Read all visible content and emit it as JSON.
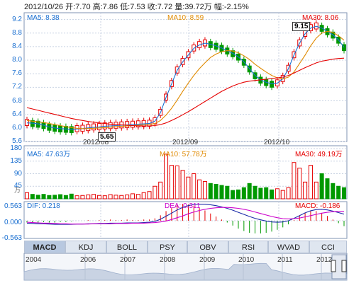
{
  "header": "2012/10/26 开:7.70 高:7.86 低:7.53 收:7.72 量:39.72万 幅:-2.15%",
  "price": {
    "ma5": "MA5: 8.38",
    "ma10": "MA10: 8.59",
    "ma30": "MA30: 8.06",
    "ticks": [
      "9.2",
      "8.8",
      "8.4",
      "8.0",
      "7.6",
      "7.2",
      "6.8",
      "6.4",
      "6.0",
      "5.6"
    ],
    "dates": [
      "2012/08",
      "2012/09",
      "2012/10"
    ],
    "max_label": "9.15",
    "min_label": "5.65"
  },
  "volume": {
    "ma5": "MA5: 47.63万",
    "ma10": "MA10: 57.78万",
    "ma30": "MA30: 49.19万",
    "ticks": [
      "180",
      "135",
      "90",
      "45"
    ],
    "unit": "万"
  },
  "macd": {
    "dif": "DIF: 0.218",
    "dea": "DEA: 0.311",
    "macd": "MACD: -0.186",
    "ticks": [
      "0.563",
      "0.000",
      "-0.563"
    ]
  },
  "tabs": [
    "MACD",
    "KDJ",
    "BOLL",
    "PSY",
    "OBV",
    "RSI",
    "WVAD",
    "CCI"
  ],
  "timeline": [
    "2004",
    "2006",
    "2007",
    "2008",
    "2009",
    "2010",
    "2011",
    "2012"
  ],
  "colors": {
    "up": "#e60000",
    "down": "#009900",
    "ma5": "#1a6fd1",
    "ma10": "#e08a00",
    "ma30": "#e60000",
    "grid": "#c8d2e2"
  },
  "chart_data": [
    {
      "type": "candlestick",
      "ylim": [
        5.6,
        9.4
      ],
      "series": [
        {
          "name": "MA5",
          "values": [
            6.15,
            6.14,
            6.12,
            6.08,
            6.03,
            6.0,
            5.98,
            5.97,
            5.96,
            5.97,
            5.98,
            6.0,
            6.02,
            6.03,
            6.05,
            6.06,
            6.07,
            6.08,
            6.09,
            6.1,
            6.11,
            6.12,
            6.13,
            6.2,
            6.45,
            6.9,
            7.3,
            7.7,
            7.95,
            8.15,
            8.35,
            8.45,
            8.5,
            8.47,
            8.42,
            8.36,
            8.28,
            8.2,
            8.1,
            7.95,
            7.75,
            7.55,
            7.42,
            7.35,
            7.3,
            7.32,
            7.45,
            7.75,
            8.15,
            8.5,
            8.78,
            8.95,
            9.0,
            8.95,
            8.85,
            8.75,
            8.6,
            8.38
          ]
        },
        {
          "name": "MA10",
          "values": [
            6.22,
            6.2,
            6.18,
            6.16,
            6.13,
            6.1,
            6.07,
            6.04,
            6.01,
            5.99,
            5.98,
            5.98,
            5.99,
            6.0,
            6.01,
            6.02,
            6.04,
            6.05,
            6.06,
            6.07,
            6.08,
            6.09,
            6.1,
            6.13,
            6.22,
            6.38,
            6.58,
            6.82,
            7.08,
            7.32,
            7.55,
            7.75,
            7.92,
            8.08,
            8.18,
            8.25,
            8.28,
            8.27,
            8.22,
            8.13,
            8.02,
            7.88,
            7.76,
            7.65,
            7.55,
            7.48,
            7.45,
            7.5,
            7.65,
            7.9,
            8.15,
            8.42,
            8.65,
            8.8,
            8.85,
            8.82,
            8.72,
            8.59
          ]
        },
        {
          "name": "MA30",
          "values": [
            6.6,
            6.56,
            6.52,
            6.48,
            6.44,
            6.4,
            6.36,
            6.32,
            6.28,
            6.25,
            6.22,
            6.19,
            6.17,
            6.15,
            6.13,
            6.11,
            6.1,
            6.09,
            6.08,
            6.07,
            6.06,
            6.06,
            6.06,
            6.07,
            6.1,
            6.15,
            6.22,
            6.3,
            6.39,
            6.48,
            6.58,
            6.68,
            6.78,
            6.88,
            6.98,
            7.08,
            7.16,
            7.24,
            7.3,
            7.35,
            7.38,
            7.4,
            7.42,
            7.44,
            7.46,
            7.48,
            7.5,
            7.55,
            7.62,
            7.7,
            7.78,
            7.85,
            7.92,
            7.97,
            8.0,
            8.03,
            8.05,
            8.06
          ]
        }
      ]
    },
    {
      "type": "bar",
      "ylim": [
        0,
        180
      ],
      "values": [
        22,
        16,
        13,
        16,
        12,
        13,
        15,
        12,
        17,
        11,
        12,
        14,
        16,
        12,
        11,
        15,
        13,
        12,
        14,
        18,
        16,
        22,
        26,
        45,
        60,
        160,
        120,
        118,
        102,
        78,
        90,
        68,
        62,
        55,
        52,
        48,
        45,
        30,
        32,
        40,
        55,
        45,
        38,
        40,
        32,
        36,
        30,
        40,
        130,
        110,
        60,
        120,
        60,
        90,
        72,
        55,
        45,
        40
      ]
    },
    {
      "type": "line",
      "ylim": [
        -0.563,
        0.563
      ],
      "series": [
        {
          "name": "DIF",
          "values": [
            -0.08,
            -0.09,
            -0.1,
            -0.1,
            -0.11,
            -0.12,
            -0.12,
            -0.12,
            -0.12,
            -0.11,
            -0.11,
            -0.1,
            -0.1,
            -0.09,
            -0.09,
            -0.08,
            -0.08,
            -0.08,
            -0.07,
            -0.07,
            -0.07,
            -0.06,
            -0.05,
            -0.02,
            0.05,
            0.15,
            0.25,
            0.36,
            0.44,
            0.5,
            0.54,
            0.55,
            0.55,
            0.53,
            0.5,
            0.46,
            0.41,
            0.35,
            0.28,
            0.21,
            0.14,
            0.08,
            0.03,
            -0.01,
            -0.04,
            -0.05,
            -0.04,
            0.0,
            0.08,
            0.17,
            0.26,
            0.33,
            0.37,
            0.38,
            0.36,
            0.32,
            0.27,
            0.22
          ]
        },
        {
          "name": "DEA",
          "values": [
            -0.05,
            -0.06,
            -0.07,
            -0.08,
            -0.08,
            -0.09,
            -0.1,
            -0.1,
            -0.11,
            -0.11,
            -0.11,
            -0.11,
            -0.1,
            -0.1,
            -0.1,
            -0.1,
            -0.09,
            -0.09,
            -0.09,
            -0.08,
            -0.08,
            -0.08,
            -0.07,
            -0.06,
            -0.04,
            -0.01,
            0.04,
            0.1,
            0.16,
            0.23,
            0.29,
            0.34,
            0.38,
            0.41,
            0.43,
            0.44,
            0.44,
            0.43,
            0.41,
            0.38,
            0.34,
            0.29,
            0.24,
            0.19,
            0.14,
            0.1,
            0.07,
            0.06,
            0.07,
            0.09,
            0.13,
            0.17,
            0.21,
            0.25,
            0.28,
            0.3,
            0.31,
            0.31
          ]
        }
      ]
    }
  ]
}
